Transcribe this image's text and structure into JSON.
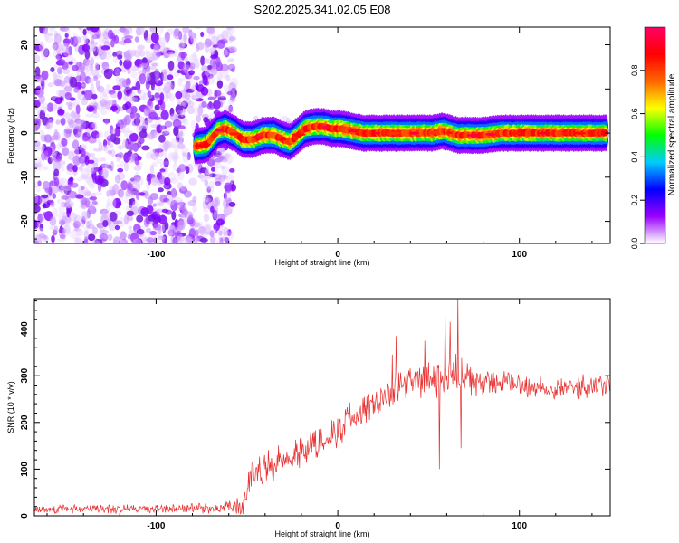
{
  "title": "S202.2025.341.02.05.E08",
  "chart_data": [
    {
      "type": "heatmap",
      "title": "S202.2025.341.02.05.E08",
      "xlabel": "Height of straight line (km)",
      "ylabel": "Frequency (Hz)",
      "xlim": [
        -167,
        150
      ],
      "ylim": [
        -25,
        24
      ],
      "xticks": [
        -100,
        0,
        100
      ],
      "yticks": [
        -20,
        -10,
        0,
        10,
        20
      ],
      "xtick_labels": [
        "-100",
        "0",
        "100"
      ],
      "ytick_labels": [
        "-20",
        "-10",
        "0",
        "10",
        "20"
      ],
      "noise_region_x": [
        -167,
        -63
      ],
      "signal_region_x": [
        -80,
        150
      ],
      "signal_frequency_track": {
        "x": [
          -78,
          -72,
          -66,
          -62,
          -57,
          -52,
          -47,
          -41,
          -35,
          -30,
          -26,
          -22,
          -18,
          -13,
          -8,
          -3,
          2,
          8,
          14,
          20,
          28,
          36,
          44,
          52,
          58,
          62,
          66,
          72,
          80,
          90,
          100,
          110,
          120,
          130,
          140,
          148
        ],
        "y": [
          -3,
          -2.5,
          0.5,
          1,
          0,
          -1.5,
          -1.5,
          -0.5,
          -0.5,
          -1.5,
          -2,
          -0.5,
          1,
          1.5,
          1.5,
          1,
          1,
          0.5,
          0,
          0,
          0,
          0,
          0,
          0,
          0.5,
          0,
          -0.5,
          -0.5,
          -0.5,
          0,
          0,
          0,
          0,
          0,
          0,
          0
        ]
      },
      "colorbar": {
        "label": "Normalized spectral amplitude",
        "range": [
          0,
          1
        ],
        "ticks": [
          0.0,
          0.2,
          0.4,
          0.6,
          0.8
        ],
        "tick_labels": [
          "0.0",
          "0.2",
          "0.4",
          "0.6",
          "0.8"
        ],
        "colors": [
          "#ffffff",
          "#9900ff",
          "#0000ff",
          "#00ccff",
          "#00ff00",
          "#ffff00",
          "#ff6600",
          "#ff0000",
          "#ff0066"
        ]
      }
    },
    {
      "type": "line",
      "xlabel": "Height of straight line (km)",
      "ylabel": "SNR (10 * v/v)",
      "xlim": [
        -167,
        150
      ],
      "ylim": [
        0,
        465
      ],
      "xticks": [
        -100,
        0,
        100
      ],
      "yticks": [
        0,
        100,
        200,
        300,
        400
      ],
      "xtick_labels": [
        "-100",
        "0",
        "100"
      ],
      "ytick_labels": [
        "0",
        "100",
        "200",
        "300",
        "400"
      ],
      "color": "#e83030",
      "series": [
        {
          "name": "SNR",
          "trend_x": [
            -167,
            -150,
            -120,
            -90,
            -65,
            -52,
            -48,
            -40,
            -30,
            -20,
            -10,
            0,
            10,
            20,
            30,
            40,
            50,
            60,
            65,
            70,
            80,
            90,
            100,
            110,
            120,
            130,
            140,
            150
          ],
          "trend_y": [
            15,
            15,
            15,
            15,
            17,
            20,
            90,
            100,
            120,
            140,
            160,
            185,
            215,
            245,
            265,
            285,
            290,
            295,
            300,
            290,
            285,
            285,
            280,
            275,
            275,
            275,
            275,
            280
          ],
          "spread": [
            12,
            12,
            12,
            12,
            14,
            25,
            45,
            40,
            40,
            45,
            45,
            45,
            45,
            40,
            40,
            40,
            45,
            55,
            55,
            45,
            35,
            30,
            30,
            30,
            30,
            30,
            30,
            30
          ],
          "spikes": [
            {
              "x": 30,
              "y": 345
            },
            {
              "x": 32,
              "y": 385
            },
            {
              "x": 56,
              "y": 100
            },
            {
              "x": 59,
              "y": 440
            },
            {
              "x": 62,
              "y": 415
            },
            {
              "x": 66,
              "y": 470
            },
            {
              "x": 68,
              "y": 145
            },
            {
              "x": 48,
              "y": 375
            }
          ]
        }
      ]
    }
  ]
}
